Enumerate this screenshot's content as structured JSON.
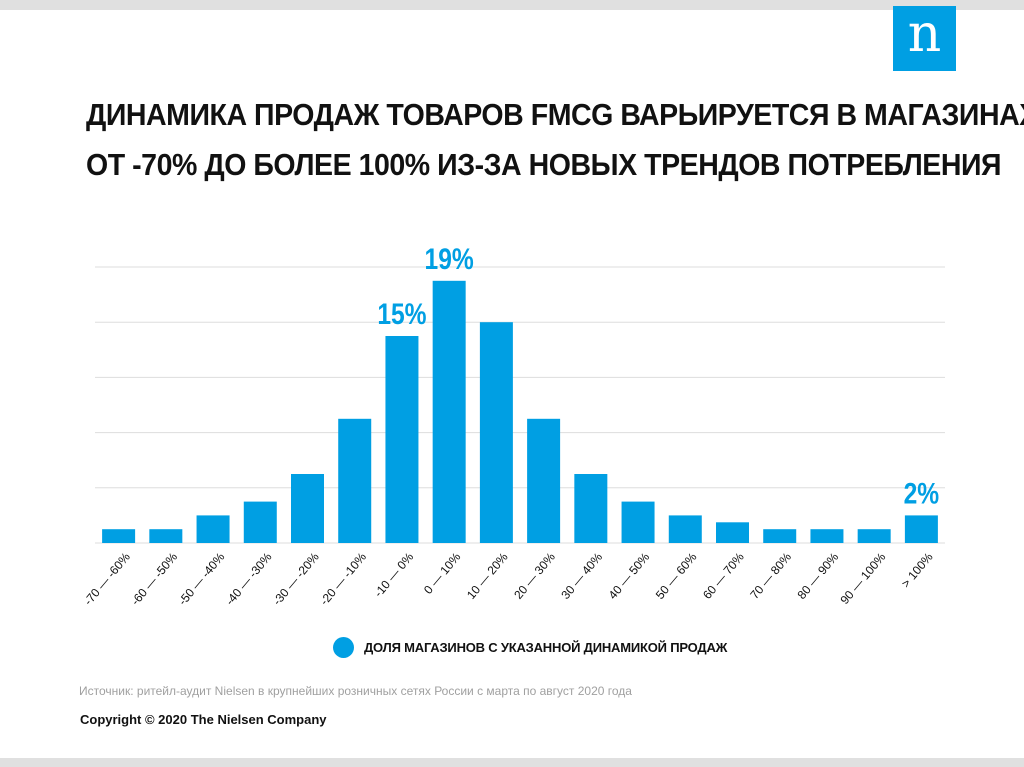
{
  "logo_text": "n",
  "title_lines": [
    "Динамика продаж товаров FMCG варьируется в магазинах",
    "от -70% до более 100% из-за новых трендов потребления"
  ],
  "colors": {
    "bar": "#009fe3",
    "label": "#009fe3",
    "grid": "#dddddd"
  },
  "chart_data": {
    "type": "bar",
    "categories": [
      "-70 — -60%",
      "-60 — -50%",
      "-50 — -40%",
      "-40 — -30%",
      "-30 — -20%",
      "-20 — -10%",
      "-10 — 0%",
      "0 — 10%",
      "10 — 20%",
      "20 — 30%",
      "30 — 40%",
      "40 — 50%",
      "50 — 60%",
      "60 — 70%",
      "70 — 80%",
      "80 — 90%",
      "90 — 100%",
      "> 100%"
    ],
    "series": [
      {
        "name": "Доля магазинов с указанной динамикой продаж",
        "values": [
          1,
          1,
          2,
          3,
          5,
          9,
          15,
          19,
          16,
          9,
          5,
          3,
          2,
          1.5,
          1,
          1,
          1,
          2
        ]
      }
    ],
    "data_labels": [
      {
        "category": "-10 — 0%",
        "text": "15%"
      },
      {
        "category": "0 — 10%",
        "text": "19%"
      },
      {
        "category": "> 100%",
        "text": "2%"
      }
    ],
    "ylim": [
      0,
      20
    ],
    "grid": true,
    "legend_position": "bottom",
    "title": "",
    "xlabel": "",
    "ylabel": ""
  },
  "legend": {
    "label": "Доля магазинов с указанной динамикой продаж"
  },
  "source": "Источник: ритейл-аудит Nielsen в крупнейших розничных сетях России с марта по август 2020 года",
  "copyright": "Copyright © 2020 The Nielsen Company"
}
